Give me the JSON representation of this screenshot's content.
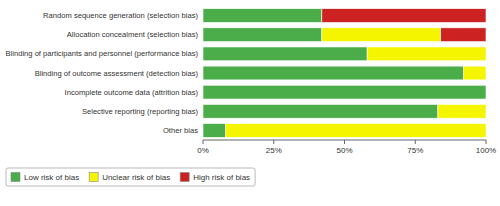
{
  "chart_data": {
    "type": "bar",
    "orientation": "horizontal",
    "stacked": true,
    "categories": [
      "Random sequence generation (selection bias)",
      "Allocation concealment (selection bias)",
      "Blinding of participants and personnel (performance bias)",
      "Blinding of outcome assessment (detection bias)",
      "Incomplete outcome data (attrition bias)",
      "Selective reporting (reporting bias)",
      "Other bias"
    ],
    "series": [
      {
        "name": "Low risk of bias",
        "color": "#4aad4a",
        "values": [
          42,
          42,
          58,
          92,
          100,
          83,
          8
        ]
      },
      {
        "name": "Unclear risk of bias",
        "color": "#f5f500",
        "values": [
          0,
          42,
          42,
          8,
          0,
          17,
          92
        ]
      },
      {
        "name": "High risk of bias",
        "color": "#cc2222",
        "values": [
          58,
          16,
          0,
          0,
          0,
          0,
          0
        ]
      }
    ],
    "xlim": [
      0,
      100
    ],
    "xticks": [
      {
        "value": 0,
        "label": "0%"
      },
      {
        "value": 25,
        "label": "25%"
      },
      {
        "value": 50,
        "label": "50%"
      },
      {
        "value": 75,
        "label": "75%"
      },
      {
        "value": 100,
        "label": "100%"
      }
    ],
    "grid": false,
    "legend": "bottom"
  }
}
